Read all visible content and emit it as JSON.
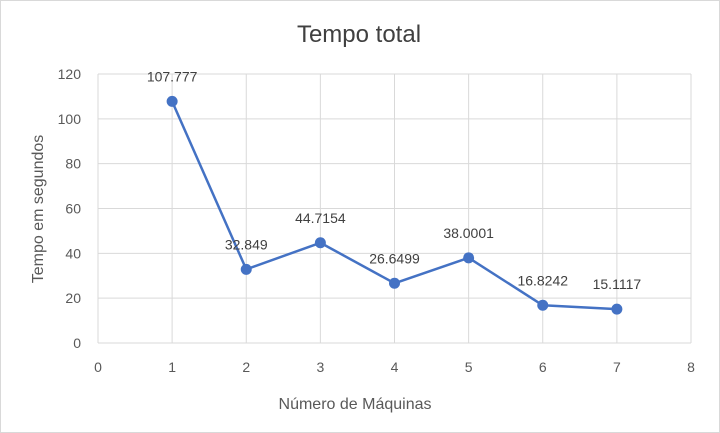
{
  "chart_data": {
    "type": "scatter",
    "title": "Tempo total",
    "xlabel": "Número de Máquinas",
    "ylabel": "Tempo em segundos",
    "xlim": [
      0,
      8
    ],
    "ylim": [
      0,
      120
    ],
    "xticks": [
      0,
      1,
      2,
      3,
      4,
      5,
      6,
      7,
      8
    ],
    "yticks": [
      0,
      20,
      40,
      60,
      80,
      100,
      120
    ],
    "grid": true,
    "series": [
      {
        "x": [
          1,
          2,
          3,
          4,
          5,
          6,
          7
        ],
        "y": [
          107.777,
          32.849,
          44.7154,
          26.6499,
          38.0001,
          16.8242,
          15.1117
        ],
        "labels": [
          "107.777",
          "32.849",
          "44.7154",
          "26.6499",
          "38.0001",
          "16.8242",
          "15.1117"
        ],
        "color": "#4472c4"
      }
    ]
  }
}
